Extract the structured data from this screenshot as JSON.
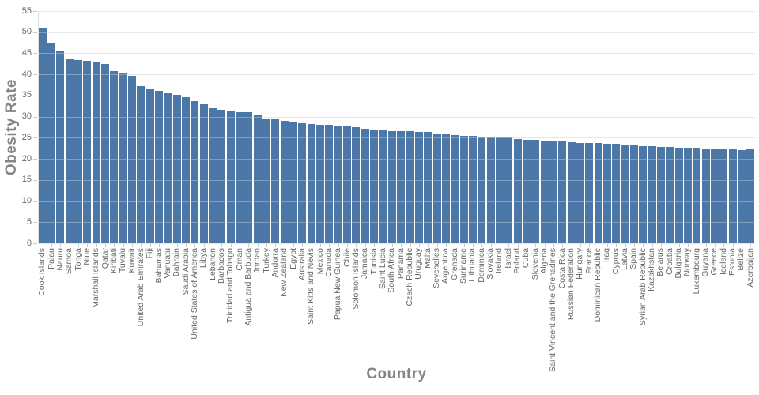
{
  "chart_data": {
    "type": "bar",
    "title": "",
    "xlabel": "Country",
    "ylabel": "Obesity Rate",
    "ylim": [
      0,
      55
    ],
    "ytick_step": 5,
    "ytick_labels": [
      "0",
      "5",
      "10",
      "15",
      "20",
      "25",
      "30",
      "35",
      "40",
      "45",
      "50",
      "55"
    ],
    "grid": true,
    "legend": "none",
    "style": {
      "bar_color": "#4c78a8",
      "grid_color": "#dddddd",
      "tick_color": "#c9c9c9",
      "tick_label_color": "#666666",
      "axis_title_color": "#858585",
      "background": "#ffffff"
    },
    "categories": [
      "Cook Islands",
      "Palau",
      "Nauru",
      "Samoa",
      "Tonga",
      "Niue",
      "Marshall Islands",
      "Qatar",
      "Kiribati",
      "Tuvalu",
      "Kuwait",
      "United Arab Emirates",
      "Fiji",
      "Bahamas",
      "Vanuatu",
      "Bahrain",
      "Saudi Arabia",
      "United States of America",
      "Libya",
      "Lebanon",
      "Barbados",
      "Trinidad and Tobago",
      "Oman",
      "Antigua and Barbuda",
      "Jordan",
      "Turkey",
      "Andorra",
      "New Zealand",
      "Egypt",
      "Australia",
      "Saint Kitts and Nevis",
      "Mexico",
      "Canada",
      "Papua New Guinea",
      "Chile",
      "Solomon Islands",
      "Jamaica",
      "Tunisia",
      "Saint Lucia",
      "South Africa",
      "Panama",
      "Czech Republic",
      "Uruguay",
      "Malta",
      "Seychelles",
      "Argentina",
      "Grenada",
      "Suriname",
      "Lithuania",
      "Dominica",
      "Slovakia",
      "Ireland",
      "Israel",
      "Poland",
      "Cuba",
      "Slovenia",
      "Algeria",
      "Saint Vincent and the Grenadines",
      "Costa Rica",
      "Russian Federation",
      "Hungary",
      "France",
      "Dominican Republic",
      "Iraq",
      "Cyprus",
      "Latvia",
      "Spain",
      "Syrian Arab Republic",
      "Kazakhstan",
      "Belarus",
      "Croatia",
      "Bulgaria",
      "Norway",
      "Luxembourg",
      "Guyana",
      "Greece",
      "Iceland",
      "Estonia",
      "Belize",
      "Azerbaijan"
    ],
    "values": [
      50.8,
      47.6,
      45.6,
      43.5,
      43.4,
      43.3,
      42.9,
      42.4,
      40.8,
      40.4,
      39.7,
      37.3,
      36.5,
      36.2,
      35.5,
      35.2,
      34.7,
      33.7,
      32.9,
      31.9,
      31.6,
      31.3,
      31.1,
      31.0,
      30.5,
      29.4,
      29.3,
      29.0,
      28.9,
      28.5,
      28.2,
      28.1,
      28.0,
      27.8,
      27.8,
      27.5,
      27.2,
      27.0,
      26.7,
      26.6,
      26.5,
      26.5,
      26.4,
      26.3,
      26.0,
      25.9,
      25.6,
      25.5,
      25.4,
      25.3,
      25.2,
      25.1,
      25.0,
      24.7,
      24.6,
      24.5,
      24.4,
      24.1,
      24.1,
      23.9,
      23.8,
      23.8,
      23.7,
      23.6,
      23.5,
      23.4,
      23.3,
      23.1,
      23.1,
      22.9,
      22.9,
      22.7,
      22.6,
      22.6,
      22.5,
      22.4,
      22.3,
      22.2,
      22.1,
      22.2
    ]
  }
}
